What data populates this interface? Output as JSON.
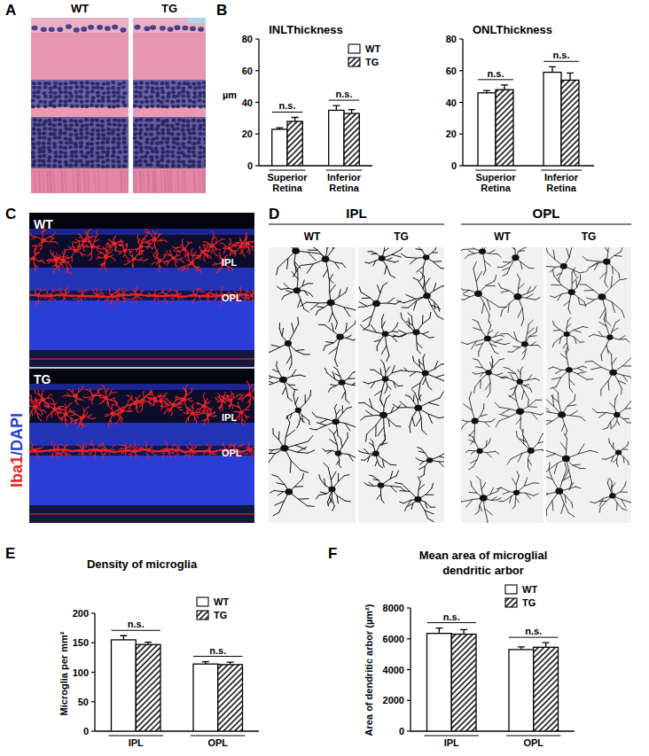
{
  "panel_letters": [
    "A",
    "B",
    "C",
    "D",
    "E",
    "F"
  ],
  "panel_a": {
    "labels": [
      "WT",
      "TG"
    ]
  },
  "panel_c": {
    "stain": [
      {
        "text": "Iba1",
        "color": "#e8262a"
      },
      {
        "text": "/DAPI",
        "color": "#2a3fd0"
      }
    ],
    "groups": [
      {
        "label": "WT",
        "layers": [
          "IPL",
          "OPL"
        ]
      },
      {
        "label": "TG",
        "layers": [
          "IPL",
          "OPL"
        ]
      }
    ]
  },
  "panel_d": {
    "groups": [
      {
        "title": "IPL",
        "labels": [
          "WT",
          "TG"
        ]
      },
      {
        "title": "OPL",
        "labels": [
          "WT",
          "TG"
        ]
      }
    ]
  },
  "chart_data": [
    {
      "type": "bar",
      "title": "INLThickness",
      "y_label": "µm",
      "categories": [
        "Superior Retina",
        "Inferior Retina"
      ],
      "series": [
        {
          "name": "WT",
          "color": "#ffffff",
          "values": [
            23,
            35
          ],
          "errors": [
            1,
            3
          ]
        },
        {
          "name": "TG",
          "color": "#ffffff",
          "line_style": "hatched",
          "values": [
            28,
            33
          ],
          "errors": [
            2.5,
            2.5
          ]
        }
      ],
      "ylim": [
        0,
        80
      ],
      "yticks": [
        0,
        20,
        40,
        60,
        80
      ],
      "legend": "top-right",
      "annotations": [
        "n.s.",
        "n.s."
      ]
    },
    {
      "type": "bar",
      "title": "ONLThickness",
      "categories": [
        "Superior Retina",
        "Inferior Retina"
      ],
      "series": [
        {
          "name": "WT",
          "color": "#ffffff",
          "values": [
            46,
            59
          ],
          "errors": [
            1.5,
            3.5
          ]
        },
        {
          "name": "TG",
          "color": "#ffffff",
          "line_style": "hatched",
          "values": [
            48,
            54
          ],
          "errors": [
            3,
            4.5
          ]
        }
      ],
      "ylim": [
        0,
        80
      ],
      "yticks": [
        0,
        20,
        40,
        60,
        80
      ],
      "annotations": [
        "n.s.",
        "n.s."
      ]
    },
    {
      "type": "bar",
      "title": "Density of microglia",
      "y_label": "Microglia per mm²",
      "categories": [
        "IPL",
        "OPL"
      ],
      "series": [
        {
          "name": "WT",
          "color": "#ffffff",
          "values": [
            155,
            114
          ],
          "errors": [
            7,
            4
          ]
        },
        {
          "name": "TG",
          "color": "#ffffff",
          "line_style": "hatched",
          "values": [
            147,
            113
          ],
          "errors": [
            4,
            4
          ]
        }
      ],
      "ylim": [
        0,
        200
      ],
      "yticks": [
        0,
        50,
        100,
        150,
        200
      ],
      "legend": "top-right",
      "annotations": [
        "n.s.",
        "n.s."
      ]
    },
    {
      "type": "bar",
      "title": "Mean area of microglial dendritic arbor",
      "y_label": "Area of dendritic arbor (µm²)",
      "categories": [
        "IPL",
        "OPL"
      ],
      "series": [
        {
          "name": "WT",
          "color": "#ffffff",
          "values": [
            6350,
            5300
          ],
          "errors": [
            350,
            180
          ]
        },
        {
          "name": "TG",
          "color": "#ffffff",
          "line_style": "hatched",
          "values": [
            6300,
            5450
          ],
          "errors": [
            300,
            300
          ]
        }
      ],
      "ylim": [
        0,
        8000
      ],
      "yticks": [
        0,
        2000,
        4000,
        6000,
        8000
      ],
      "legend": "top-right",
      "annotations": [
        "n.s.",
        "n.s."
      ]
    }
  ]
}
